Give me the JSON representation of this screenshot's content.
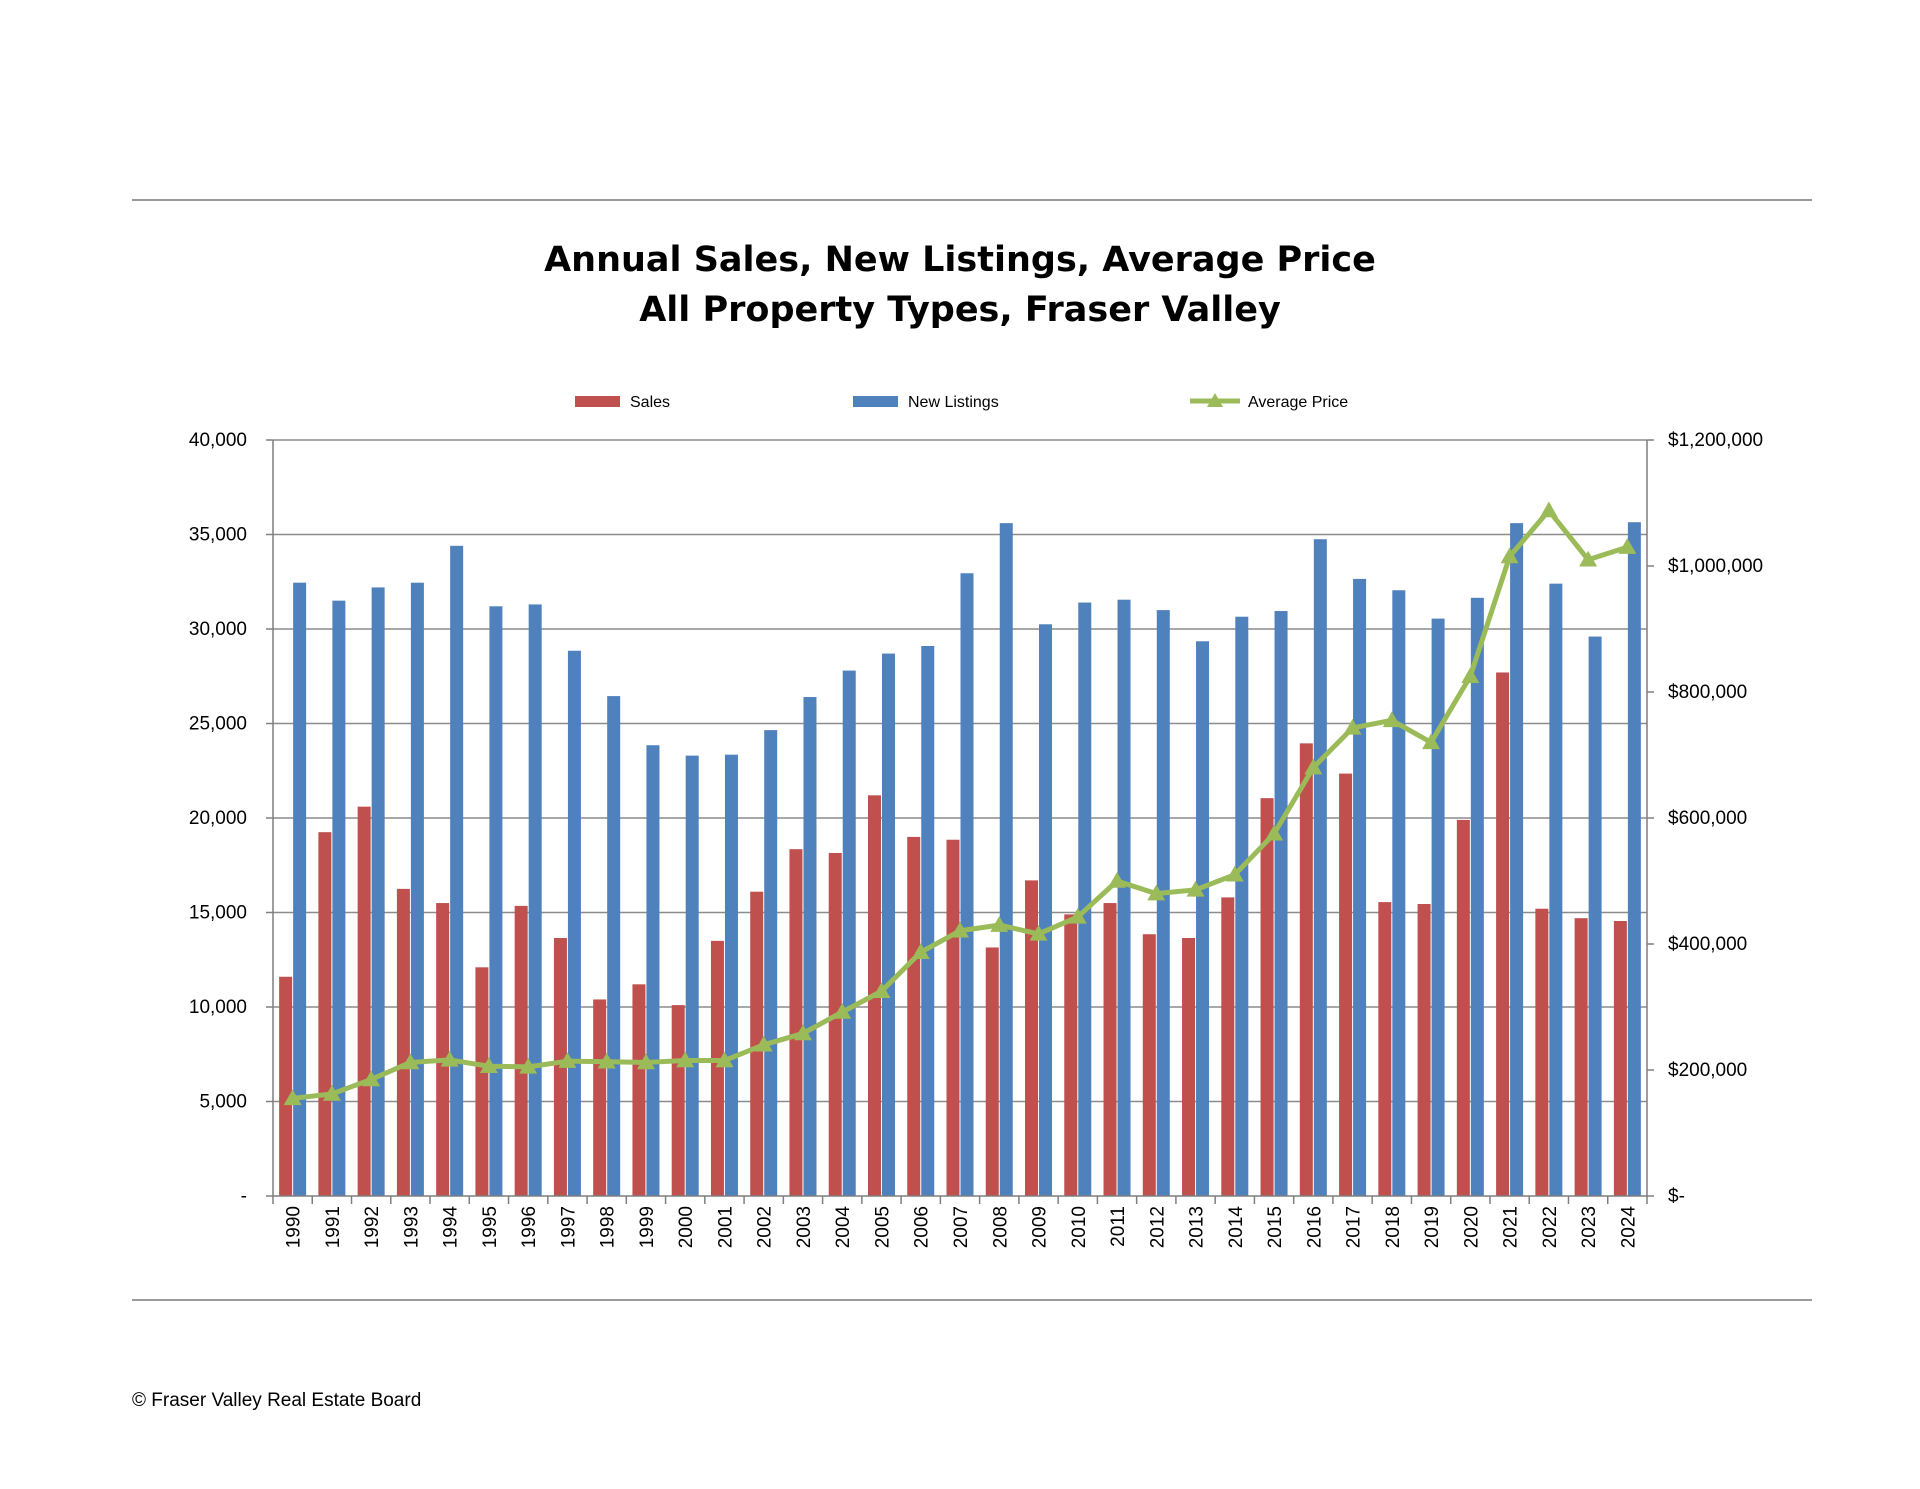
{
  "chart_data": {
    "type": "bar",
    "title": "Annual Sales, New Listings, Average Price",
    "subtitle": "All Property Types, Fraser Valley",
    "categories": [
      "1990",
      "1991",
      "1992",
      "1993",
      "1994",
      "1995",
      "1996",
      "1997",
      "1998",
      "1999",
      "2000",
      "2001",
      "2002",
      "2003",
      "2004",
      "2005",
      "2006",
      "2007",
      "2008",
      "2009",
      "2010",
      "2011",
      "2012",
      "2013",
      "2014",
      "2015",
      "2016",
      "2017",
      "2018",
      "2019",
      "2020",
      "2021",
      "2022",
      "2023",
      "2024"
    ],
    "series": [
      {
        "name": "Sales",
        "type": "bar",
        "axis": "left",
        "color": "#c0504d",
        "values": [
          11600,
          19250,
          20600,
          16250,
          15500,
          12100,
          15350,
          13650,
          10400,
          11200,
          10100,
          13500,
          16100,
          18350,
          18150,
          21200,
          19000,
          18850,
          13150,
          16700,
          14900,
          15500,
          13850,
          13650,
          15800,
          21050,
          23950,
          22350,
          15550,
          15450,
          19900,
          27700,
          15200,
          14700,
          14550
        ]
      },
      {
        "name": "New Listings",
        "type": "bar",
        "axis": "left",
        "color": "#4f81bd",
        "values": [
          32450,
          31500,
          32200,
          32450,
          34400,
          31200,
          31300,
          28850,
          26450,
          23850,
          23300,
          23350,
          24650,
          26400,
          27800,
          28700,
          29100,
          32950,
          35600,
          30250,
          31400,
          31550,
          31000,
          29350,
          30650,
          30950,
          34750,
          32650,
          32050,
          30550,
          31650,
          35600,
          32400,
          29600,
          35650
        ]
      },
      {
        "name": "Average Price",
        "type": "line",
        "axis": "right",
        "color": "#9bbb59",
        "values": [
          155000,
          162000,
          185000,
          212000,
          216000,
          206000,
          205000,
          214000,
          213000,
          212000,
          215000,
          215000,
          240000,
          258000,
          292000,
          325000,
          387000,
          421000,
          430000,
          416000,
          443000,
          500000,
          480000,
          486000,
          510000,
          575000,
          680000,
          743000,
          755000,
          720000,
          825000,
          1015000,
          1088000,
          1010000,
          1030000
        ]
      }
    ],
    "yleft": {
      "ylim": [
        0,
        40000
      ],
      "ticks": [
        "-",
        "5,000",
        "10,000",
        "15,000",
        "20,000",
        "25,000",
        "30,000",
        "35,000",
        "40,000"
      ]
    },
    "yright": {
      "ylim": [
        0,
        1200000
      ],
      "ticks": [
        "$-",
        "$200,000",
        "$400,000",
        "$600,000",
        "$800,000",
        "$1,000,000",
        "$1,200,000"
      ]
    },
    "grid": true,
    "legend": "top"
  },
  "footer": "© Fraser Valley Real Estate Board"
}
